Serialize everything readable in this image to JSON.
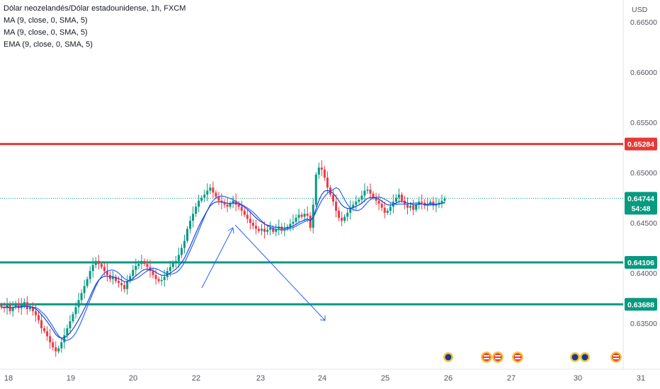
{
  "legend": {
    "title": "Dólar neozelandés/Dólar estadounidense, 1h, FXCM",
    "indicators": [
      "MA (9, close, 0, SMA, 5)",
      "MA (9, close, 0, SMA, 5)",
      "EMA (9, close, 0, SMA, 5)"
    ]
  },
  "price_axis": {
    "currency": "USD",
    "ticks": [
      "0.66500",
      "0.66000",
      "0.65500",
      "0.65000",
      "0.64500",
      "0.64000",
      "0.63500"
    ],
    "tick_values": [
      0.665,
      0.66,
      0.655,
      0.65,
      0.645,
      0.64,
      0.635
    ]
  },
  "time_axis": {
    "labels": [
      "18",
      "19",
      "20",
      "22",
      "23",
      "24",
      "25",
      "26",
      "27",
      "30",
      "31"
    ]
  },
  "levels": [
    {
      "name": "resistance",
      "value": 0.65284,
      "label": "0.65284",
      "color": "#e53935"
    },
    {
      "name": "support-1",
      "value": 0.64106,
      "label": "0.64106",
      "color": "#089981"
    },
    {
      "name": "support-2",
      "value": 0.63688,
      "label": "0.63688",
      "color": "#089981"
    }
  ],
  "current_price": {
    "label": "0.64744",
    "countdown": "54:48",
    "color": "#089981",
    "value": 0.64744
  },
  "colors": {
    "up": "#089981",
    "down": "#f23645",
    "ma": "#2962ff",
    "ema": "#1848cc"
  },
  "chart_data": {
    "type": "candlestick",
    "title": "Dólar neozelandés/Dólar estadounidense, 1h, FXCM",
    "ylabel": "USD",
    "ylim": [
      0.6325,
      0.6675
    ],
    "series_close": [
      0.6366,
      0.6365,
      0.6368,
      0.6362,
      0.6366,
      0.637,
      0.6365,
      0.6368,
      0.6371,
      0.6364,
      0.6366,
      0.6362,
      0.6358,
      0.6353,
      0.6345,
      0.6342,
      0.6337,
      0.6331,
      0.6326,
      0.6322,
      0.6325,
      0.6331,
      0.6338,
      0.6345,
      0.6352,
      0.6359,
      0.6366,
      0.6373,
      0.638,
      0.6387,
      0.6394,
      0.6402,
      0.6408,
      0.6412,
      0.6409,
      0.6406,
      0.6402,
      0.6398,
      0.6394,
      0.6396,
      0.6392,
      0.639,
      0.6388,
      0.6384,
      0.6392,
      0.6397,
      0.6403,
      0.6407,
      0.6409,
      0.6412,
      0.6409,
      0.6406,
      0.6402,
      0.6398,
      0.6394,
      0.6392,
      0.6393,
      0.6396,
      0.6402,
      0.6406,
      0.641,
      0.6412,
      0.6418,
      0.6425,
      0.6432,
      0.6444,
      0.6452,
      0.6459,
      0.6466,
      0.6472,
      0.6475,
      0.6478,
      0.6482,
      0.6485,
      0.648,
      0.6476,
      0.6472,
      0.647,
      0.6468,
      0.6466,
      0.6469,
      0.6472,
      0.6468,
      0.6466,
      0.6462,
      0.6458,
      0.6454,
      0.645,
      0.6447,
      0.6444,
      0.6442,
      0.6444,
      0.6441,
      0.6443,
      0.6445,
      0.6441,
      0.6444,
      0.6446,
      0.6442,
      0.6444,
      0.6446,
      0.6449,
      0.6451,
      0.6455,
      0.6458,
      0.6456,
      0.6459,
      0.6457,
      0.6445,
      0.6468,
      0.6498,
      0.6505,
      0.6503,
      0.6495,
      0.6485,
      0.6478,
      0.6471,
      0.6462,
      0.6455,
      0.6452,
      0.6456,
      0.646,
      0.6465,
      0.6468,
      0.6471,
      0.6473,
      0.6477,
      0.6482,
      0.6483,
      0.6479,
      0.6475,
      0.6472,
      0.6469,
      0.6465,
      0.646,
      0.6462,
      0.6466,
      0.6471,
      0.6475,
      0.6478,
      0.6472,
      0.6468,
      0.6465,
      0.6467,
      0.6463,
      0.6468,
      0.6471,
      0.647,
      0.6467,
      0.6469,
      0.6471,
      0.6467,
      0.6468,
      0.647,
      0.6472,
      0.6474
    ],
    "time_labels": [
      "18",
      "19",
      "20",
      "22",
      "23",
      "24",
      "25",
      "26",
      "27",
      "30",
      "31"
    ],
    "horizontal_levels": [
      0.65284,
      0.64106,
      0.63688
    ],
    "last_price": 0.64744
  }
}
